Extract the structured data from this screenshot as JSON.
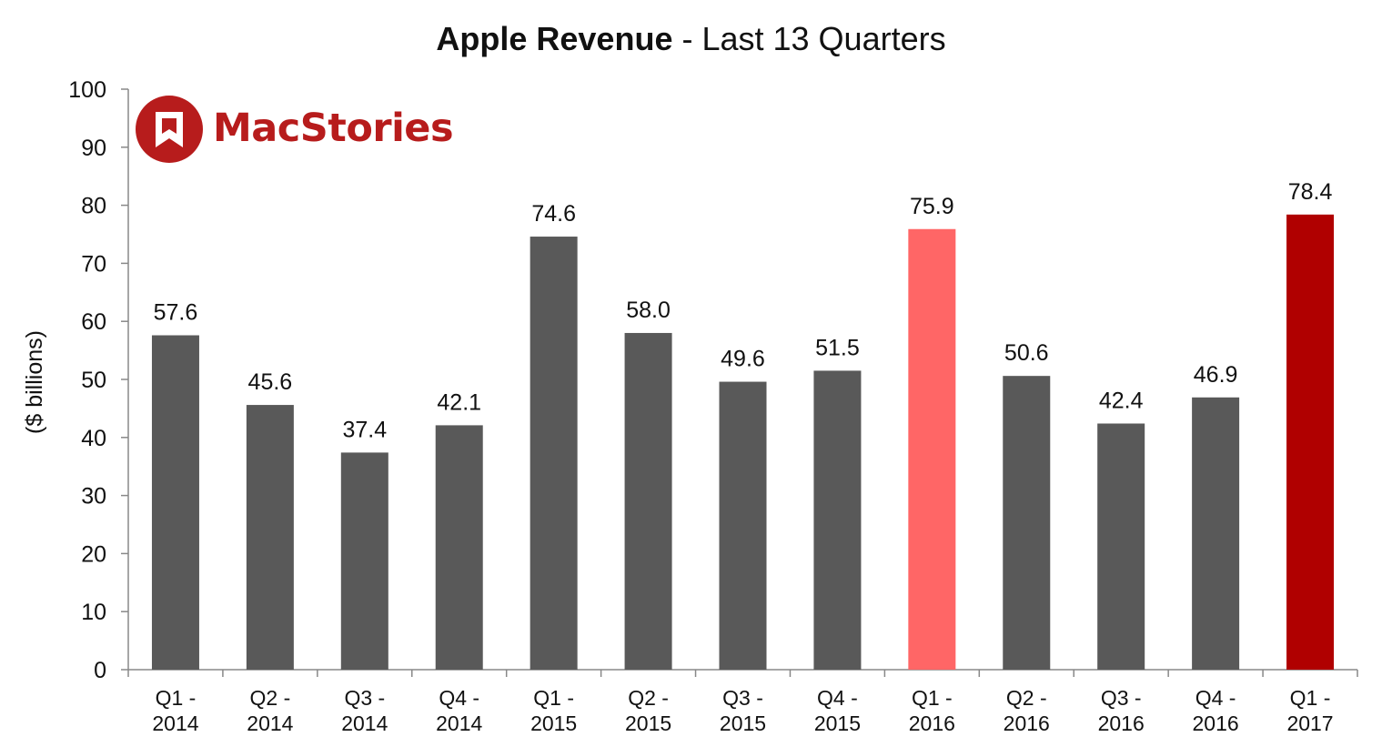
{
  "title_bold": "Apple Revenue",
  "title_rest": " - Last 13 Quarters",
  "brand": {
    "name": "MacStories",
    "color": "#b71c1c"
  },
  "chart_data": {
    "type": "bar",
    "title": "Apple Revenue - Last 13 Quarters",
    "ylabel": "($ billions)",
    "xlabel": "",
    "ylim": [
      0,
      100
    ],
    "yticks": [
      0,
      10,
      20,
      30,
      40,
      50,
      60,
      70,
      80,
      90,
      100
    ],
    "grid": false,
    "categories": [
      [
        "Q1 -",
        "2014"
      ],
      [
        "Q2 -",
        "2014"
      ],
      [
        "Q3 -",
        "2014"
      ],
      [
        "Q4 -",
        "2014"
      ],
      [
        "Q1 -",
        "2015"
      ],
      [
        "Q2 -",
        "2015"
      ],
      [
        "Q3 -",
        "2015"
      ],
      [
        "Q4 -",
        "2015"
      ],
      [
        "Q1 -",
        "2016"
      ],
      [
        "Q2 -",
        "2016"
      ],
      [
        "Q3 -",
        "2016"
      ],
      [
        "Q4 -",
        "2016"
      ],
      [
        "Q1 -",
        "2017"
      ]
    ],
    "values": [
      57.6,
      45.6,
      37.4,
      42.1,
      74.6,
      58.0,
      49.6,
      51.5,
      75.9,
      50.6,
      42.4,
      46.9,
      78.4
    ],
    "value_labels": [
      "57.6",
      "45.6",
      "37.4",
      "42.1",
      "74.6",
      "58.0",
      "49.6",
      "51.5",
      "75.9",
      "50.6",
      "42.4",
      "46.9",
      "78.4"
    ],
    "colors": [
      "#595959",
      "#595959",
      "#595959",
      "#595959",
      "#595959",
      "#595959",
      "#595959",
      "#595959",
      "#ff6666",
      "#595959",
      "#595959",
      "#595959",
      "#b00000"
    ]
  }
}
